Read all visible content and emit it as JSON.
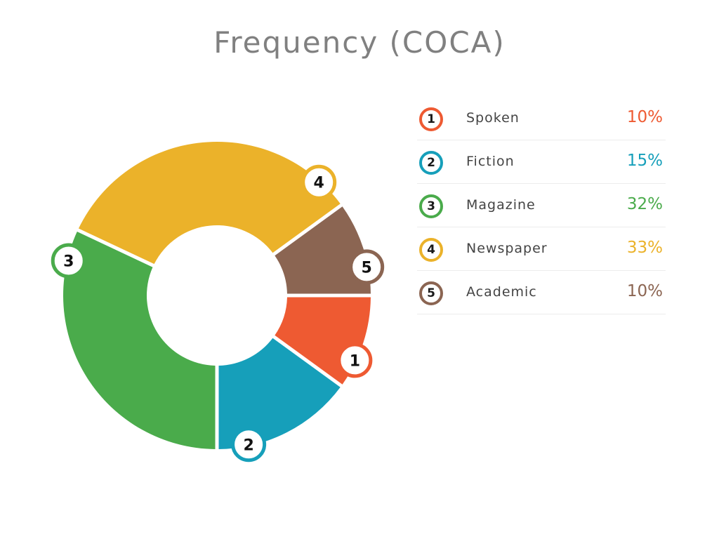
{
  "chart_data": {
    "type": "pie",
    "variant": "donut",
    "title": "Frequency (COCA)",
    "legend_position": "right",
    "slices": [
      {
        "number": "1",
        "label": "Spoken",
        "value": 10,
        "value_label": "10%",
        "color": "#EE5A32"
      },
      {
        "number": "2",
        "label": "Fiction",
        "value": 15,
        "value_label": "15%",
        "color": "#169FBA"
      },
      {
        "number": "3",
        "label": "Magazine",
        "value": 32,
        "value_label": "32%",
        "color": "#4AAB4B"
      },
      {
        "number": "4",
        "label": "Newspaper",
        "value": 33,
        "value_label": "33%",
        "color": "#EBB22A"
      },
      {
        "number": "5",
        "label": "Academic",
        "value": 10,
        "value_label": "10%",
        "color": "#8B6552"
      }
    ]
  }
}
